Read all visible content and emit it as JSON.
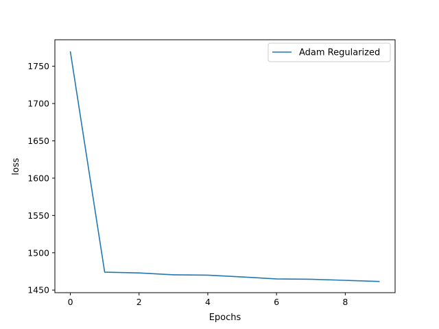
{
  "chart_data": {
    "type": "line",
    "title": "",
    "xlabel": "Epochs",
    "ylabel": "loss",
    "xlim": [
      -0.45,
      9.45
    ],
    "ylim": [
      1446.5,
      1785.5
    ],
    "xticks": [
      0,
      2,
      4,
      6,
      8
    ],
    "yticks": [
      1450,
      1500,
      1550,
      1600,
      1650,
      1700,
      1750
    ],
    "grid": false,
    "legend_position": "top-right",
    "series": [
      {
        "name": "Adam Regularized",
        "color": "#1f77b4",
        "x": [
          0,
          1,
          2,
          3,
          4,
          5,
          6,
          7,
          8,
          9
        ],
        "y": [
          1770,
          1474,
          1473,
          1470.5,
          1470,
          1467.5,
          1465,
          1464.5,
          1463,
          1461.5
        ]
      }
    ]
  }
}
